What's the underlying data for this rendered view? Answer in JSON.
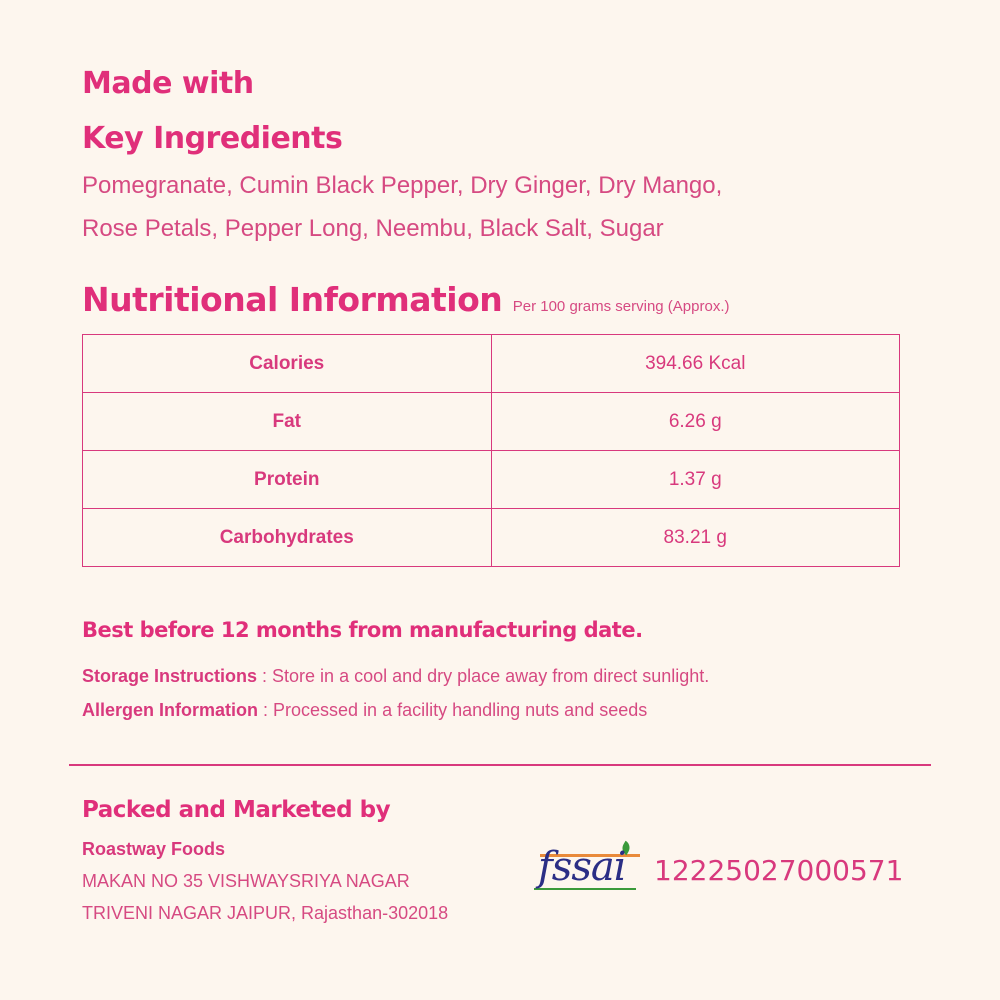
{
  "ingredients": {
    "heading_line1": "Made with",
    "heading_line2": "Key Ingredients",
    "line1": "Pomegranate, Cumin Black Pepper, Dry Ginger, Dry Mango,",
    "line2": "Rose Petals, Pepper Long, Neembu, Black Salt, Sugar"
  },
  "nutrition": {
    "title": "Nutritional Information",
    "subtitle": "Per 100 grams serving (Approx.)",
    "rows": [
      {
        "label": "Calories",
        "value": "394.66 Kcal"
      },
      {
        "label": "Fat",
        "value": "6.26 g"
      },
      {
        "label": "Protein",
        "value": "1.37 g"
      },
      {
        "label": "Carbohydrates",
        "value": "83.21 g"
      }
    ]
  },
  "shelf_life": "Best before 12 months from manufacturing date.",
  "storage": {
    "label": "Storage Instructions",
    "text": " : Store in a cool and dry place away from direct sunlight."
  },
  "allergen": {
    "label": "Allergen Information",
    "text": " : Processed in a facility handling nuts and seeds"
  },
  "packer": {
    "heading": "Packed and Marketed by",
    "name": "Roastway Foods",
    "address1": "MAKAN NO 35 VISHWAYSRIYA NAGAR",
    "address2": "TRIVENI NAGAR JAIPUR, Rajasthan-302018"
  },
  "fssai": {
    "logo_text": "fssai",
    "license": "12225027000571"
  },
  "colors": {
    "accent": "#e02f7a",
    "background": "#fdf6ee"
  }
}
